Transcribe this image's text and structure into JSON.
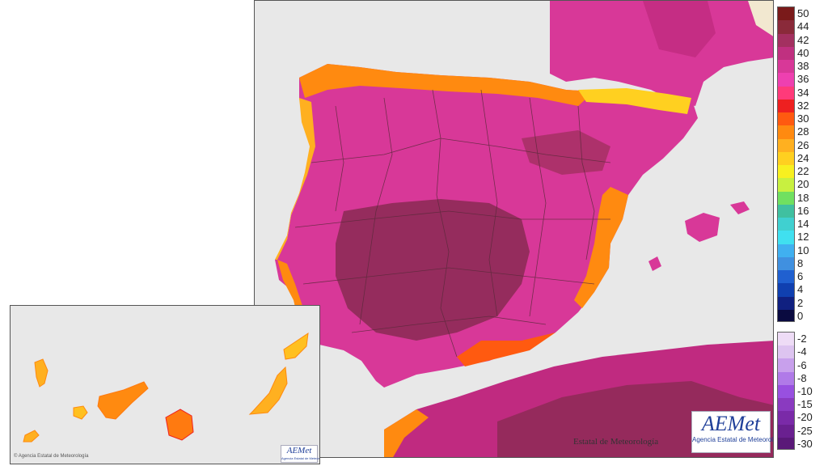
{
  "main_map": {
    "credit_text": "Estatal de Meteorología",
    "logo": {
      "word": "AEMet",
      "subtitle": "Agencia Estatal de Meteorología"
    },
    "colors": {
      "sea": "#e8e8e8",
      "hot": "#8a2a52",
      "warm": "#c02a80",
      "pink": "#e03aa0",
      "orange": "#ff7a10",
      "yellow": "#ffc020",
      "red": "#ee2020",
      "borders": "#5a2a3a"
    }
  },
  "canary_map": {
    "credit_text": "© Agencia Estatal de Meteorología",
    "logo": {
      "word": "AEMet",
      "subtitle": "Agencia Estatal de Meteorología"
    }
  },
  "legend": {
    "upper_scale": {
      "labels": [
        "50",
        "44",
        "42",
        "40",
        "38",
        "36",
        "34",
        "32",
        "30",
        "28",
        "26",
        "24",
        "22",
        "20",
        "18",
        "16",
        "14",
        "12",
        "10",
        "8",
        "6",
        "4",
        "2",
        "0"
      ],
      "colors": [
        "#7a1a1a",
        "#8a2a3a",
        "#a33060",
        "#c03080",
        "#d83898",
        "#ee40b0",
        "#ff3a7a",
        "#ee2020",
        "#ff5a10",
        "#ff8a10",
        "#ffb020",
        "#ffd020",
        "#f8f020",
        "#c8f040",
        "#70e060",
        "#40c0a0",
        "#40d0d0",
        "#40e0f0",
        "#40b0f0",
        "#4090e0",
        "#2060d0",
        "#1040b0",
        "#102080",
        "#0a0a40"
      ]
    },
    "lower_scale": {
      "labels": [
        "-2",
        "-4",
        "-6",
        "-8",
        "-10",
        "-15",
        "-20",
        "-25",
        "-30"
      ],
      "colors": [
        "#eedcf6",
        "#ddc4f0",
        "#c8a0ec",
        "#b07ae8",
        "#9850e0",
        "#8a3ac0",
        "#7a2aa8",
        "#6a2090",
        "#5a1878"
      ]
    }
  }
}
